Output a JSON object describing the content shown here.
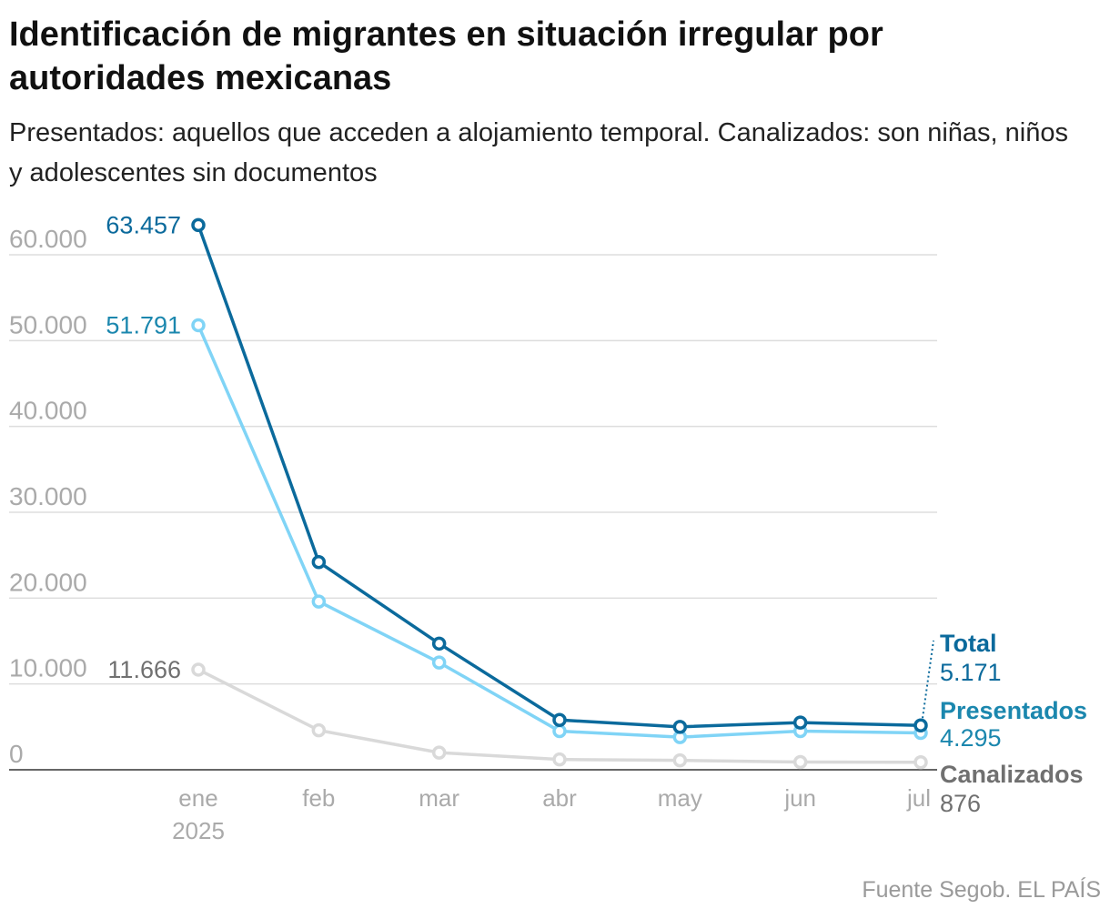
{
  "title": "Identificación de migrantes en situación irregular por autoridades mexicanas",
  "subtitle": "Presentados: aquellos que acceden a alojamiento temporal. Canalizados: son niñas, niños y adolescentes sin documentos",
  "source": "Fuente Segob. EL PAÍS",
  "colors": {
    "total": "#0b6a9c",
    "presentados": "#80d4f6",
    "canalizados": "#d9d9d9",
    "grid": "#dddddd",
    "axis_text": "#aaaaaa",
    "total_label": "#0b6a9c",
    "presentados_label": "#1b87ae",
    "canalizados_label": "#707070",
    "baseline": "#333333"
  },
  "chart_data": {
    "type": "line",
    "title": "Identificación de migrantes en situación irregular por autoridades mexicanas",
    "xlabel": "",
    "ylabel": "",
    "categories": [
      "ene",
      "feb",
      "mar",
      "abr",
      "may",
      "jun",
      "jul"
    ],
    "year_label": "2025",
    "ylim": [
      0,
      60000
    ],
    "yticks": [
      0,
      10000,
      20000,
      30000,
      40000,
      50000,
      60000
    ],
    "ytick_labels": [
      "0",
      "10.000",
      "20.000",
      "30.000",
      "40.000",
      "50.000",
      "60.000"
    ],
    "grid": true,
    "series": [
      {
        "key": "canalizados",
        "name": "Canalizados",
        "values": [
          11666,
          4600,
          2000,
          1200,
          1100,
          900,
          876
        ],
        "start_label": "11.666",
        "end_label": "876"
      },
      {
        "key": "presentados",
        "name": "Presentados",
        "values": [
          51791,
          19600,
          12500,
          4500,
          3800,
          4500,
          4295
        ],
        "start_label": "51.791",
        "end_label": "4.295"
      },
      {
        "key": "total",
        "name": "Total",
        "values": [
          63457,
          24200,
          14700,
          5800,
          5000,
          5500,
          5171
        ],
        "start_label": "63.457",
        "end_label": "5.171"
      }
    ]
  }
}
